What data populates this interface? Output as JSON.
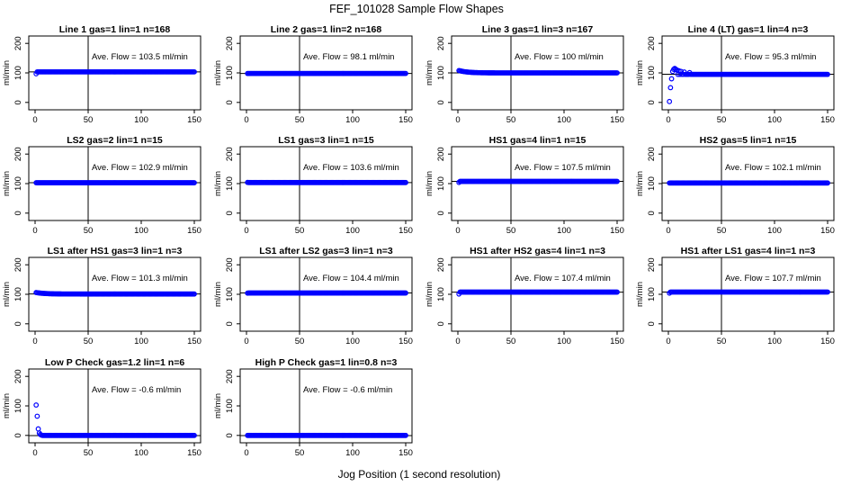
{
  "figure": {
    "title": "FEF_101028  Sample Flow Shapes",
    "xlabel": "Jog Position (1 second resolution)"
  },
  "chart_data": [
    {
      "type": "scatter",
      "title": "Line 1 gas=1 lin=1 n=168",
      "ylabel": "ml/min",
      "annotation": "Ave. Flow =  103.5  ml/min",
      "xlim": [
        0,
        150
      ],
      "ylim": [
        -25,
        225
      ],
      "yticks": [
        0,
        100,
        200
      ],
      "xticks": [
        0,
        50,
        100,
        150
      ],
      "vline": 50,
      "hline": 103.5,
      "series": [
        {
          "name": "",
          "color": "#0000ff",
          "shape": "flat",
          "start": 97,
          "level": 103.5
        }
      ]
    },
    {
      "type": "scatter",
      "title": "Line 2 gas=1 lin=2 n=168",
      "ylabel": "ml/min",
      "annotation": "Ave. Flow =  98.1  ml/min",
      "xlim": [
        0,
        150
      ],
      "ylim": [
        -25,
        225
      ],
      "yticks": [
        0,
        100,
        200
      ],
      "xticks": [
        0,
        50,
        100,
        150
      ],
      "vline": 50,
      "hline": 98.1,
      "series": [
        {
          "name": "",
          "color": "#0000ff",
          "shape": "flat",
          "start": 98,
          "level": 98.1
        }
      ]
    },
    {
      "type": "scatter",
      "title": "Line 3 gas=1 lin=3 n=167",
      "ylabel": "ml/min",
      "annotation": "Ave. Flow =  100  ml/min",
      "xlim": [
        0,
        150
      ],
      "ylim": [
        -25,
        225
      ],
      "yticks": [
        0,
        100,
        200
      ],
      "xticks": [
        0,
        50,
        100,
        150
      ],
      "vline": 50,
      "hline": 100,
      "series": [
        {
          "name": "",
          "color": "#0000ff",
          "shape": "decay",
          "start": 108,
          "level": 100
        }
      ]
    },
    {
      "type": "scatter",
      "title": "Line 4 (LT) gas=1 lin=4 n=3",
      "ylabel": "ml/min",
      "annotation": "Ave. Flow =  95.3  ml/min",
      "xlim": [
        0,
        150
      ],
      "ylim": [
        -25,
        225
      ],
      "yticks": [
        0,
        100,
        200
      ],
      "xticks": [
        0,
        50,
        100,
        150
      ],
      "vline": 50,
      "hline": 95.3,
      "series": [
        {
          "name": "",
          "color": "#0000ff",
          "shape": "rise",
          "start": 0,
          "level": 95,
          "points": [
            [
              1,
              3
            ],
            [
              2,
              50
            ],
            [
              3,
              80
            ],
            [
              4,
              105
            ],
            [
              5,
              112
            ],
            [
              6,
              115
            ],
            [
              7,
              112
            ],
            [
              8,
              110
            ],
            [
              10,
              107
            ],
            [
              12,
              105
            ],
            [
              15,
              103
            ],
            [
              20,
              101
            ]
          ]
        }
      ]
    },
    {
      "type": "scatter",
      "title": "LS2 gas=2 lin=1 n=15",
      "ylabel": "ml/min",
      "annotation": "Ave. Flow =  102.9  ml/min",
      "xlim": [
        0,
        150
      ],
      "ylim": [
        -25,
        225
      ],
      "yticks": [
        0,
        100,
        200
      ],
      "xticks": [
        0,
        50,
        100,
        150
      ],
      "vline": 50,
      "hline": 102.9,
      "series": [
        {
          "name": "",
          "color": "#0000ff",
          "shape": "flat",
          "start": 103,
          "level": 102.9
        }
      ]
    },
    {
      "type": "scatter",
      "title": "LS1 gas=3 lin=1 n=15",
      "ylabel": "ml/min",
      "annotation": "Ave. Flow =  103.6  ml/min",
      "xlim": [
        0,
        150
      ],
      "ylim": [
        -25,
        225
      ],
      "yticks": [
        0,
        100,
        200
      ],
      "xticks": [
        0,
        50,
        100,
        150
      ],
      "vline": 50,
      "hline": 103.6,
      "series": [
        {
          "name": "",
          "color": "#0000ff",
          "shape": "flat",
          "start": 104,
          "level": 103.6
        }
      ]
    },
    {
      "type": "scatter",
      "title": "HS1 gas=4 lin=1 n=15",
      "ylabel": "ml/min",
      "annotation": "Ave. Flow =  107.5  ml/min",
      "xlim": [
        0,
        150
      ],
      "ylim": [
        -25,
        225
      ],
      "yticks": [
        0,
        100,
        200
      ],
      "xticks": [
        0,
        50,
        100,
        150
      ],
      "vline": 50,
      "hline": 107.5,
      "series": [
        {
          "name": "",
          "color": "#0000ff",
          "shape": "flat",
          "start": 104,
          "level": 107.5
        }
      ]
    },
    {
      "type": "scatter",
      "title": "HS2 gas=5 lin=1 n=15",
      "ylabel": "ml/min",
      "annotation": "Ave. Flow =  102.1  ml/min",
      "xlim": [
        0,
        150
      ],
      "ylim": [
        -25,
        225
      ],
      "yticks": [
        0,
        100,
        200
      ],
      "xticks": [
        0,
        50,
        100,
        150
      ],
      "vline": 50,
      "hline": 102.1,
      "series": [
        {
          "name": "",
          "color": "#0000ff",
          "shape": "flat",
          "start": 102,
          "level": 102.1
        }
      ]
    },
    {
      "type": "scatter",
      "title": "LS1 after HS1 gas=3 lin=1 n=3",
      "ylabel": "ml/min",
      "annotation": "Ave. Flow =  101.3  ml/min",
      "xlim": [
        0,
        150
      ],
      "ylim": [
        -25,
        225
      ],
      "yticks": [
        0,
        100,
        200
      ],
      "xticks": [
        0,
        50,
        100,
        150
      ],
      "vline": 50,
      "hline": 101.3,
      "series": [
        {
          "name": "",
          "color": "#0000ff",
          "shape": "decay",
          "start": 106,
          "level": 101
        }
      ]
    },
    {
      "type": "scatter",
      "title": "LS1 after LS2 gas=3 lin=1 n=3",
      "ylabel": "ml/min",
      "annotation": "Ave. Flow =  104.4  ml/min",
      "xlim": [
        0,
        150
      ],
      "ylim": [
        -25,
        225
      ],
      "yticks": [
        0,
        100,
        200
      ],
      "xticks": [
        0,
        50,
        100,
        150
      ],
      "vline": 50,
      "hline": 104.4,
      "series": [
        {
          "name": "",
          "color": "#0000ff",
          "shape": "flat",
          "start": 104,
          "level": 104.4
        }
      ]
    },
    {
      "type": "scatter",
      "title": "HS1 after HS2 gas=4 lin=1 n=3",
      "ylabel": "ml/min",
      "annotation": "Ave. Flow =  107.4  ml/min",
      "xlim": [
        0,
        150
      ],
      "ylim": [
        -25,
        225
      ],
      "yticks": [
        0,
        100,
        200
      ],
      "xticks": [
        0,
        50,
        100,
        150
      ],
      "vline": 50,
      "hline": 107.4,
      "series": [
        {
          "name": "",
          "color": "#0000ff",
          "shape": "flat",
          "start": 101,
          "level": 107.4
        }
      ]
    },
    {
      "type": "scatter",
      "title": "HS1 after LS1 gas=4 lin=1 n=3",
      "ylabel": "ml/min",
      "annotation": "Ave. Flow =  107.7  ml/min",
      "xlim": [
        0,
        150
      ],
      "ylim": [
        -25,
        225
      ],
      "yticks": [
        0,
        100,
        200
      ],
      "xticks": [
        0,
        50,
        100,
        150
      ],
      "vline": 50,
      "hline": 107.7,
      "series": [
        {
          "name": "",
          "color": "#0000ff",
          "shape": "flat",
          "start": 104,
          "level": 107.7
        }
      ]
    },
    {
      "type": "scatter",
      "title": "Low P Check gas=1.2 lin=1 n=6",
      "ylabel": "ml/min",
      "annotation": "Ave. Flow =  -0.6  ml/min",
      "xlim": [
        0,
        150
      ],
      "ylim": [
        -25,
        225
      ],
      "yticks": [
        0,
        100,
        200
      ],
      "xticks": [
        0,
        50,
        100,
        150
      ],
      "vline": 50,
      "hline": -0.6,
      "series": [
        {
          "name": "",
          "color": "#0000ff",
          "shape": "spike",
          "start": 0,
          "level": 0,
          "points": [
            [
              1,
              103
            ],
            [
              2,
              65
            ],
            [
              3,
              22
            ],
            [
              4,
              8
            ],
            [
              5,
              3
            ],
            [
              6,
              1
            ]
          ]
        }
      ]
    },
    {
      "type": "scatter",
      "title": "High P Check gas=1 lin=0.8 n=3",
      "ylabel": "ml/min",
      "annotation": "Ave. Flow =  -0.6  ml/min",
      "xlim": [
        0,
        150
      ],
      "ylim": [
        -25,
        225
      ],
      "yticks": [
        0,
        100,
        200
      ],
      "xticks": [
        0,
        50,
        100,
        150
      ],
      "vline": 50,
      "hline": -0.6,
      "series": [
        {
          "name": "",
          "color": "#0000ff",
          "shape": "flat",
          "start": 0,
          "level": 0
        }
      ]
    }
  ]
}
